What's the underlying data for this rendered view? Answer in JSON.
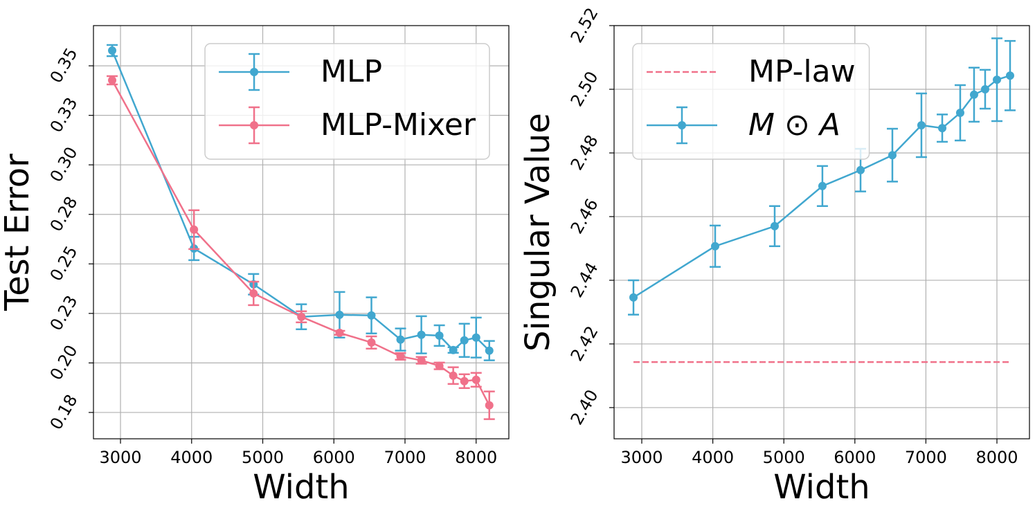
{
  "chart_data": [
    {
      "type": "line",
      "xlabel": "Width",
      "ylabel": "Test Error",
      "grid": true,
      "legend": "upper right",
      "x": [
        2883,
        4033,
        4871,
        5543,
        6080,
        6528,
        6937,
        7230,
        7483,
        7678,
        7834,
        8000,
        8185
      ],
      "xlim": [
        2620,
        8460
      ],
      "xticks": [
        3000,
        4000,
        5000,
        6000,
        7000,
        8000
      ],
      "ylim": [
        0.1617,
        0.3703
      ],
      "yticks": [
        {
          "value": 0.175,
          "label": "0.18"
        },
        {
          "value": 0.2,
          "label": "0.20"
        },
        {
          "value": 0.225,
          "label": "0.23"
        },
        0.25,
        {
          "value": 0.275,
          "label": "0.28"
        },
        {
          "value": 0.3,
          "label": "0.30"
        },
        {
          "value": 0.325,
          "label": "0.33"
        },
        0.35
      ],
      "series": [
        {
          "name": "MLP",
          "color": "#41a7cf",
          "values": [
            0.3577,
            0.2578,
            0.2397,
            0.2233,
            0.2243,
            0.224,
            0.2118,
            0.2142,
            0.2138,
            0.2065,
            0.2114,
            0.2128,
            0.2062
          ],
          "errors": [
            0.0028,
            0.0059,
            0.0052,
            0.0063,
            0.0115,
            0.0091,
            0.0056,
            0.0094,
            0.0052,
            0.0014,
            0.0084,
            0.0101,
            0.0049
          ]
        },
        {
          "name": "MLP-Mixer",
          "color": "#f0718a",
          "values": [
            0.3427,
            0.2673,
            0.2351,
            0.2233,
            0.2152,
            0.2103,
            0.2033,
            0.2013,
            0.1985,
            0.1936,
            0.1908,
            0.1915,
            0.1786
          ],
          "errors": [
            0.0021,
            0.0098,
            0.0059,
            0.0028,
            0.001,
            0.0031,
            0.0017,
            0.0017,
            0.0017,
            0.0042,
            0.0035,
            0.0035,
            0.007
          ]
        }
      ]
    },
    {
      "type": "line",
      "xlabel": "Width",
      "ylabel": "Singular Value",
      "grid": true,
      "legend": "upper left",
      "x": [
        2883,
        4033,
        4871,
        5543,
        6080,
        6528,
        6937,
        7230,
        7483,
        7678,
        7834,
        8000,
        8185
      ],
      "xlim": [
        2610,
        8458
      ],
      "xticks": [
        3000,
        4000,
        5000,
        6000,
        7000,
        8000
      ],
      "ylim": [
        2.3902,
        2.52
      ],
      "yticks": [
        {
          "value": 2.4,
          "label": "2.40"
        },
        2.42,
        2.44,
        2.46,
        2.48,
        {
          "value": 2.5,
          "label": "2.50"
        },
        2.52
      ],
      "reference": {
        "name": "MP-law",
        "value": 2.4143,
        "color": "#f0718a",
        "linestyle": "dashed"
      },
      "series": [
        {
          "name": "M ⊙ A",
          "color": "#41a7cf",
          "italic": true,
          "values": [
            2.4346,
            2.4507,
            2.457,
            2.4696,
            2.4746,
            2.4793,
            2.4887,
            2.4878,
            2.4926,
            2.4983,
            2.5,
            2.503,
            2.5043
          ],
          "errors": [
            0.0054,
            0.0065,
            0.0063,
            0.0063,
            0.0067,
            0.0083,
            0.01,
            0.0043,
            0.0087,
            0.0085,
            0.0061,
            0.013,
            0.0109
          ]
        }
      ]
    }
  ]
}
